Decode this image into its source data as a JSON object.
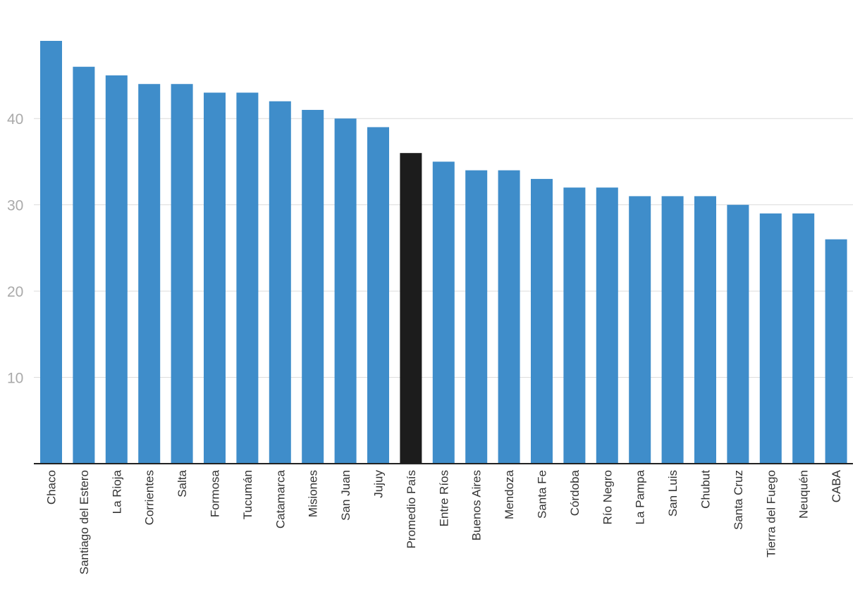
{
  "chart_data": {
    "type": "bar",
    "categories": [
      "Chaco",
      "Santiago del Estero",
      "La Rioja",
      "Corrientes",
      "Salta",
      "Formosa",
      "Tucumán",
      "Catamarca",
      "Misiones",
      "San Juan",
      "Jujuy",
      "Promedio País",
      "Entre Ríos",
      "Buenos Aires",
      "Mendoza",
      "Santa Fe",
      "Córdoba",
      "Río Negro",
      "La Pampa",
      "San Luis",
      "Chubut",
      "Santa Cruz",
      "Tierra del Fuego",
      "Neuquén",
      "CABA"
    ],
    "values": [
      49,
      46,
      45,
      44,
      44,
      43,
      43,
      42,
      41,
      40,
      39,
      36,
      35,
      34,
      34,
      33,
      32,
      32,
      31,
      31,
      31,
      30,
      29,
      29,
      26
    ],
    "title": "",
    "xlabel": "",
    "ylabel": "",
    "ylim": [
      0,
      49
    ],
    "yticks": [
      10,
      20,
      30,
      40
    ],
    "grid": true,
    "legend": "none",
    "colors": {
      "bar": "#3f8dca",
      "highlight": "#1c1c1c",
      "highlight_category": "Promedio País"
    }
  }
}
